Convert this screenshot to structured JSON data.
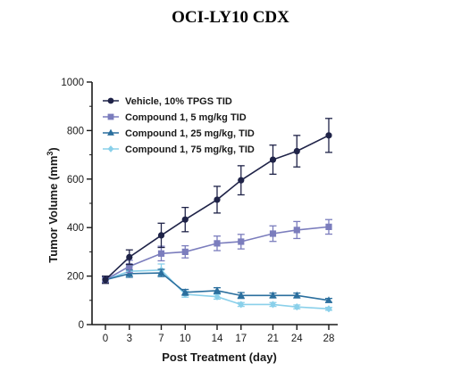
{
  "chart_data": {
    "type": "line",
    "title": "OCI-LY10 CDX",
    "xlabel": "Post Treatment (day)",
    "ylabel": "Tumor Volume (mm³)",
    "ylabel_base": "Tumor Volume (mm",
    "ylabel_sup": "3",
    "ylabel_end": ")",
    "x": [
      0,
      3,
      7,
      10,
      14,
      17,
      21,
      24,
      28
    ],
    "xticks": [
      "0",
      "3",
      "7",
      "10",
      "14",
      "17",
      "21",
      "24",
      "28"
    ],
    "yticks": [
      "0",
      "200",
      "400",
      "600",
      "800",
      "1000"
    ],
    "ylim": [
      0,
      1000
    ],
    "legend_position": "top-left",
    "grid": false,
    "series": [
      {
        "name": "Vehicle, 10% TPGS TID",
        "color": "#1f2348",
        "marker": "circle",
        "values": [
          185,
          278,
          368,
          433,
          515,
          595,
          680,
          715,
          780
        ],
        "errors": [
          15,
          30,
          50,
          50,
          55,
          60,
          60,
          65,
          70
        ]
      },
      {
        "name": "Compound 1, 5 mg/kg TID",
        "color": "#7b7dbd",
        "marker": "square",
        "values": [
          185,
          240,
          293,
          300,
          335,
          342,
          375,
          390,
          403
        ],
        "errors": [
          12,
          25,
          30,
          25,
          30,
          30,
          32,
          35,
          30
        ]
      },
      {
        "name": "Compound 1, 25 mg/kg, TID",
        "color": "#2b6f9e",
        "marker": "triangle",
        "values": [
          185,
          210,
          213,
          133,
          140,
          120,
          120,
          120,
          100
        ],
        "errors": [
          12,
          15,
          15,
          12,
          12,
          12,
          10,
          10,
          8
        ]
      },
      {
        "name": "Compound 1, 75 mg/kg, TID",
        "color": "#8ad0ea",
        "marker": "diamond",
        "values": [
          185,
          220,
          225,
          125,
          115,
          83,
          83,
          73,
          65
        ],
        "errors": [
          10,
          20,
          25,
          12,
          10,
          8,
          8,
          8,
          6
        ]
      }
    ]
  }
}
